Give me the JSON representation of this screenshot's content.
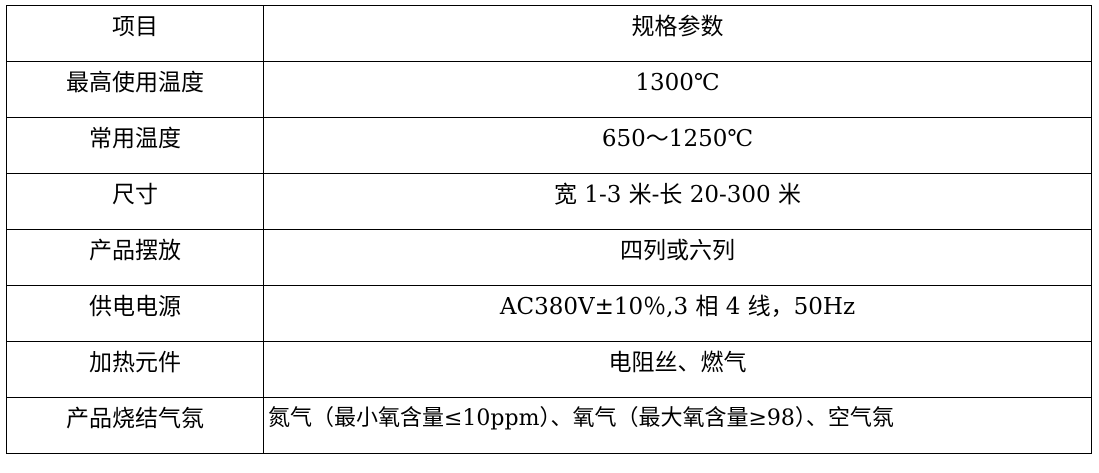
{
  "header": {
    "item": "项目",
    "spec": "规格参数"
  },
  "rows": [
    {
      "item": "最高使用温度",
      "spec": "1300℃"
    },
    {
      "item": "常用温度",
      "spec": "650～1250℃"
    },
    {
      "item": "尺寸",
      "spec": "宽 1-3 米-长 20-300 米"
    },
    {
      "item": "产品摆放",
      "spec": "四列或六列"
    },
    {
      "item": "供电电源",
      "spec": "AC380V±10％,3 相 4 线，50Hz"
    },
    {
      "item": "加热元件",
      "spec": "电阻丝、燃气"
    },
    {
      "item": "产品烧结气氛",
      "spec": "氮气（最小氧含量≤10ppm）、氧气（最大氧含量≥98）、空气氛"
    }
  ]
}
